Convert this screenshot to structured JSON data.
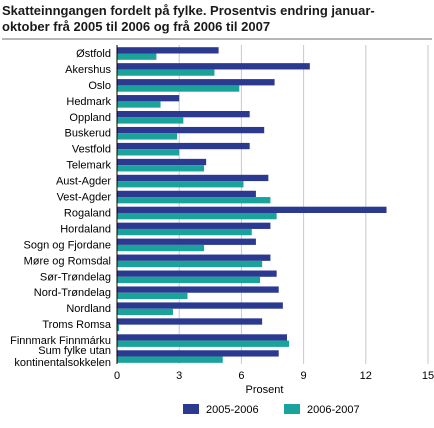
{
  "chart_data": {
    "type": "bar",
    "orientation": "horizontal",
    "title_line1": "Skatteinngangen fordelt på fylke. Prosentvis endring januar-",
    "title_line2": "oktober frå 2005 til 2006 og frå 2006 til 2007",
    "xlabel": "Prosent",
    "xlim": [
      0,
      15
    ],
    "xticks": [
      "0",
      "3",
      "6",
      "9",
      "12",
      "15"
    ],
    "grid": true,
    "legend_position": "bottom",
    "categories": [
      [
        "Østfold"
      ],
      [
        "Akershus"
      ],
      [
        "Oslo"
      ],
      [
        "Hedmark"
      ],
      [
        "Oppland"
      ],
      [
        "Buskerud"
      ],
      [
        "Vestfold"
      ],
      [
        "Telemark"
      ],
      [
        "Aust-Agder"
      ],
      [
        "Vest-Agder"
      ],
      [
        "Rogaland"
      ],
      [
        "Hordaland"
      ],
      [
        "Sogn og Fjordane"
      ],
      [
        "Møre og Romsdal"
      ],
      [
        "Sør-Trøndelag"
      ],
      [
        "Nord-Trøndelag"
      ],
      [
        "Nordland"
      ],
      [
        "Troms Romsa"
      ],
      [
        "Finnmark Finnmárku"
      ],
      [
        "Sum fylke utan",
        "kontinentalsokkelen"
      ]
    ],
    "series": [
      {
        "name": "2005-2006",
        "color": "#2b3990",
        "values": [
          4.9,
          9.3,
          7.6,
          3.0,
          6.4,
          7.1,
          6.4,
          4.3,
          7.3,
          6.7,
          13.0,
          7.4,
          6.7,
          7.4,
          7.7,
          7.8,
          8.0,
          7.0,
          8.2,
          7.8
        ]
      },
      {
        "name": "2006-2007",
        "color": "#1aa39a",
        "values": [
          1.9,
          4.7,
          5.9,
          2.1,
          3.2,
          2.9,
          3.0,
          4.2,
          6.1,
          7.4,
          7.7,
          6.5,
          4.2,
          7.0,
          6.9,
          3.4,
          2.7,
          0.1,
          8.3,
          5.1
        ]
      }
    ]
  }
}
